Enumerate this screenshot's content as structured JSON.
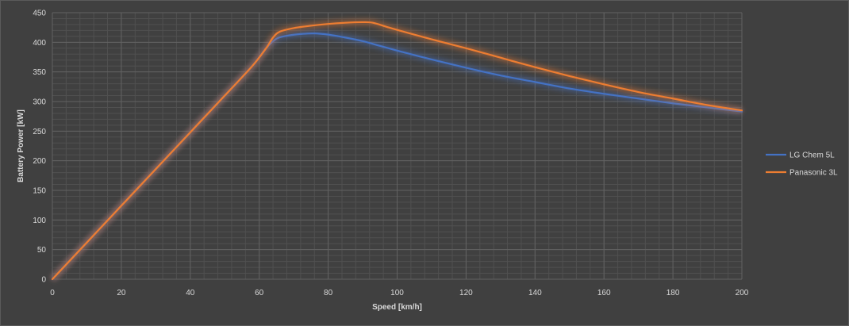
{
  "chart_data": {
    "type": "line",
    "title": "",
    "xlabel": "Speed [km/h]",
    "ylabel": "Battery Power [kW]",
    "xlim": [
      0,
      200
    ],
    "ylim": [
      0,
      450
    ],
    "x_ticks": [
      0,
      20,
      40,
      60,
      80,
      100,
      120,
      140,
      160,
      180,
      200
    ],
    "y_ticks": [
      0,
      50,
      100,
      150,
      200,
      250,
      300,
      350,
      400,
      450
    ],
    "grid": true,
    "legend_position": "right",
    "series": [
      {
        "name": "LG Chem 5L",
        "color": "#4472c4",
        "points": [
          [
            0,
            0
          ],
          [
            10,
            62
          ],
          [
            20,
            124
          ],
          [
            30,
            186
          ],
          [
            40,
            248
          ],
          [
            50,
            310
          ],
          [
            58,
            360
          ],
          [
            62,
            390
          ],
          [
            65,
            406
          ],
          [
            68,
            411
          ],
          [
            72,
            414
          ],
          [
            76,
            415
          ],
          [
            80,
            413
          ],
          [
            85,
            408
          ],
          [
            90,
            402
          ],
          [
            95,
            394
          ],
          [
            100,
            386
          ],
          [
            110,
            371
          ],
          [
            120,
            357
          ],
          [
            130,
            344
          ],
          [
            140,
            333
          ],
          [
            150,
            322
          ],
          [
            160,
            313
          ],
          [
            170,
            305
          ],
          [
            180,
            297
          ],
          [
            190,
            290
          ],
          [
            200,
            283
          ]
        ]
      },
      {
        "name": "Panasonic 3L",
        "color": "#ed7d31",
        "points": [
          [
            0,
            0
          ],
          [
            10,
            62
          ],
          [
            20,
            124
          ],
          [
            30,
            186
          ],
          [
            40,
            248
          ],
          [
            50,
            310
          ],
          [
            58,
            360
          ],
          [
            62,
            390
          ],
          [
            64,
            408
          ],
          [
            66,
            418
          ],
          [
            70,
            424
          ],
          [
            75,
            428
          ],
          [
            80,
            431
          ],
          [
            85,
            433
          ],
          [
            90,
            434
          ],
          [
            93,
            433
          ],
          [
            97,
            426
          ],
          [
            100,
            421
          ],
          [
            110,
            405
          ],
          [
            120,
            390
          ],
          [
            130,
            374
          ],
          [
            140,
            358
          ],
          [
            150,
            343
          ],
          [
            160,
            329
          ],
          [
            170,
            316
          ],
          [
            180,
            305
          ],
          [
            190,
            294
          ],
          [
            200,
            285
          ]
        ]
      }
    ]
  }
}
